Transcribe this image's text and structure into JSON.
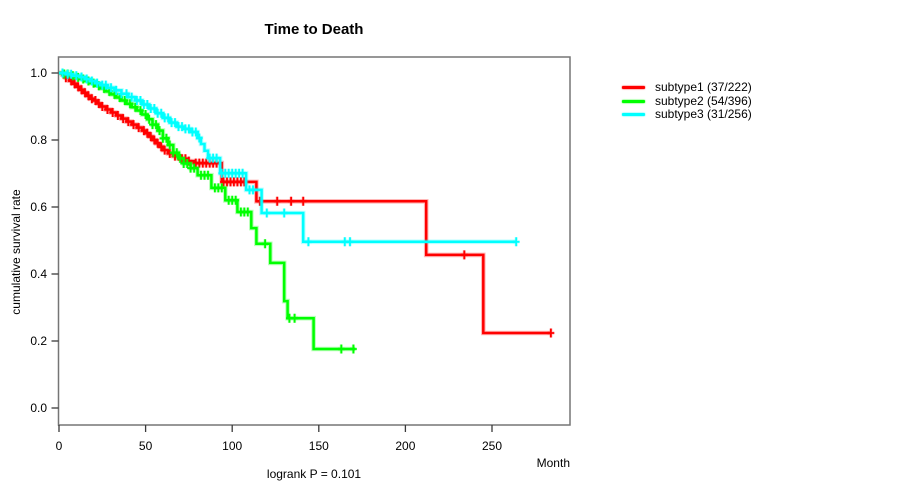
{
  "title": "Time to Death",
  "chart_data": {
    "type": "line",
    "variant": "kaplan-meier-step",
    "title": "Time to Death",
    "xlabel": "Month",
    "ylabel": "cumulative survival rate",
    "annotation": "logrank P = 0.101",
    "xlim": [
      0,
      295
    ],
    "ylim": [
      0,
      1
    ],
    "x_ticks": [
      0,
      50,
      100,
      150,
      200,
      250
    ],
    "y_ticks": [
      "1.0",
      "0.8",
      "0.6",
      "0.4",
      "0.2",
      "0.0"
    ],
    "grid": false,
    "legend_position": "right-outside",
    "series": [
      {
        "name": "subtype1 (37/222)",
        "color": "#ff0000",
        "steps": [
          [
            0,
            1.0
          ],
          [
            2,
            0.995
          ],
          [
            4,
            0.986
          ],
          [
            6,
            0.977
          ],
          [
            8,
            0.968
          ],
          [
            10,
            0.959
          ],
          [
            12,
            0.95
          ],
          [
            14,
            0.941
          ],
          [
            16,
            0.932
          ],
          [
            18,
            0.923
          ],
          [
            20,
            0.918
          ],
          [
            22,
            0.909
          ],
          [
            24,
            0.9
          ],
          [
            27,
            0.891
          ],
          [
            30,
            0.882
          ],
          [
            33,
            0.873
          ],
          [
            36,
            0.864
          ],
          [
            39,
            0.855
          ],
          [
            42,
            0.846
          ],
          [
            45,
            0.837
          ],
          [
            48,
            0.828
          ],
          [
            50,
            0.82
          ],
          [
            52,
            0.81
          ],
          [
            54,
            0.8
          ],
          [
            56,
            0.79
          ],
          [
            58,
            0.78
          ],
          [
            60,
            0.77
          ],
          [
            63,
            0.76
          ],
          [
            66,
            0.752
          ],
          [
            70,
            0.744
          ],
          [
            74,
            0.737
          ],
          [
            78,
            0.731
          ],
          [
            94,
            0.675
          ],
          [
            114,
            0.617
          ],
          [
            212,
            0.457
          ],
          [
            245,
            0.224
          ]
        ],
        "end_month": 284,
        "censor_months": [
          4,
          7,
          9,
          11,
          13,
          15,
          17,
          19,
          21,
          23,
          25,
          28,
          31,
          34,
          37,
          40,
          43,
          46,
          49,
          51,
          53,
          55,
          57,
          59,
          61,
          64,
          67,
          69,
          71,
          73,
          75,
          79,
          81,
          83,
          85,
          87,
          89,
          91,
          95,
          97,
          99,
          101,
          103,
          105,
          107,
          116,
          126,
          134,
          141,
          234,
          284
        ]
      },
      {
        "name": "subtype2 (54/396)",
        "color": "#00ff00",
        "steps": [
          [
            0,
            1.0
          ],
          [
            3,
            0.997
          ],
          [
            6,
            0.992
          ],
          [
            9,
            0.987
          ],
          [
            12,
            0.982
          ],
          [
            15,
            0.976
          ],
          [
            18,
            0.97
          ],
          [
            21,
            0.962
          ],
          [
            24,
            0.954
          ],
          [
            27,
            0.945
          ],
          [
            30,
            0.936
          ],
          [
            33,
            0.927
          ],
          [
            36,
            0.918
          ],
          [
            39,
            0.908
          ],
          [
            42,
            0.898
          ],
          [
            45,
            0.888
          ],
          [
            48,
            0.876
          ],
          [
            51,
            0.862
          ],
          [
            54,
            0.846
          ],
          [
            57,
            0.828
          ],
          [
            60,
            0.805
          ],
          [
            63,
            0.785
          ],
          [
            66,
            0.762
          ],
          [
            69,
            0.745
          ],
          [
            72,
            0.73
          ],
          [
            76,
            0.716
          ],
          [
            80,
            0.695
          ],
          [
            88,
            0.657
          ],
          [
            96,
            0.62
          ],
          [
            103,
            0.585
          ],
          [
            111,
            0.537
          ],
          [
            114,
            0.49
          ],
          [
            122,
            0.433
          ],
          [
            130,
            0.319
          ],
          [
            132,
            0.268
          ],
          [
            147,
            0.176
          ]
        ],
        "end_month": 171,
        "censor_months": [
          3,
          5,
          8,
          11,
          14,
          17,
          20,
          23,
          26,
          29,
          32,
          35,
          38,
          41,
          44,
          47,
          50,
          52,
          54,
          56,
          58,
          60,
          62,
          64,
          66,
          68,
          70,
          72,
          74,
          76,
          78,
          82,
          84,
          86,
          90,
          92,
          94,
          98,
          100,
          102,
          105,
          107,
          109,
          119,
          133,
          136,
          163,
          170
        ]
      },
      {
        "name": "subtype3 (31/256)",
        "color": "#00ffff",
        "steps": [
          [
            0,
            1.0
          ],
          [
            4,
            0.996
          ],
          [
            8,
            0.992
          ],
          [
            12,
            0.988
          ],
          [
            15,
            0.982
          ],
          [
            18,
            0.976
          ],
          [
            21,
            0.97
          ],
          [
            24,
            0.964
          ],
          [
            28,
            0.956
          ],
          [
            32,
            0.948
          ],
          [
            36,
            0.938
          ],
          [
            40,
            0.928
          ],
          [
            44,
            0.918
          ],
          [
            48,
            0.906
          ],
          [
            52,
            0.894
          ],
          [
            56,
            0.88
          ],
          [
            60,
            0.866
          ],
          [
            64,
            0.852
          ],
          [
            68,
            0.84
          ],
          [
            72,
            0.833
          ],
          [
            76,
            0.824
          ],
          [
            80,
            0.806
          ],
          [
            82,
            0.788
          ],
          [
            84,
            0.768
          ],
          [
            86,
            0.746
          ],
          [
            93,
            0.701
          ],
          [
            108,
            0.651
          ],
          [
            117,
            0.582
          ],
          [
            141,
            0.496
          ]
        ],
        "end_month": 264,
        "censor_months": [
          2,
          5,
          7,
          10,
          13,
          16,
          19,
          22,
          25,
          27,
          30,
          33,
          36,
          39,
          42,
          45,
          47,
          49,
          51,
          53,
          55,
          57,
          59,
          61,
          63,
          65,
          67,
          69,
          71,
          73,
          75,
          77,
          79,
          81,
          87,
          89,
          91,
          94,
          96,
          98,
          100,
          102,
          104,
          106,
          110,
          112,
          120,
          130,
          144,
          165,
          168,
          264
        ]
      }
    ]
  },
  "style": {
    "box_color": "#757575",
    "tick_color": "#3a3a3a",
    "text_color": "#000000"
  }
}
